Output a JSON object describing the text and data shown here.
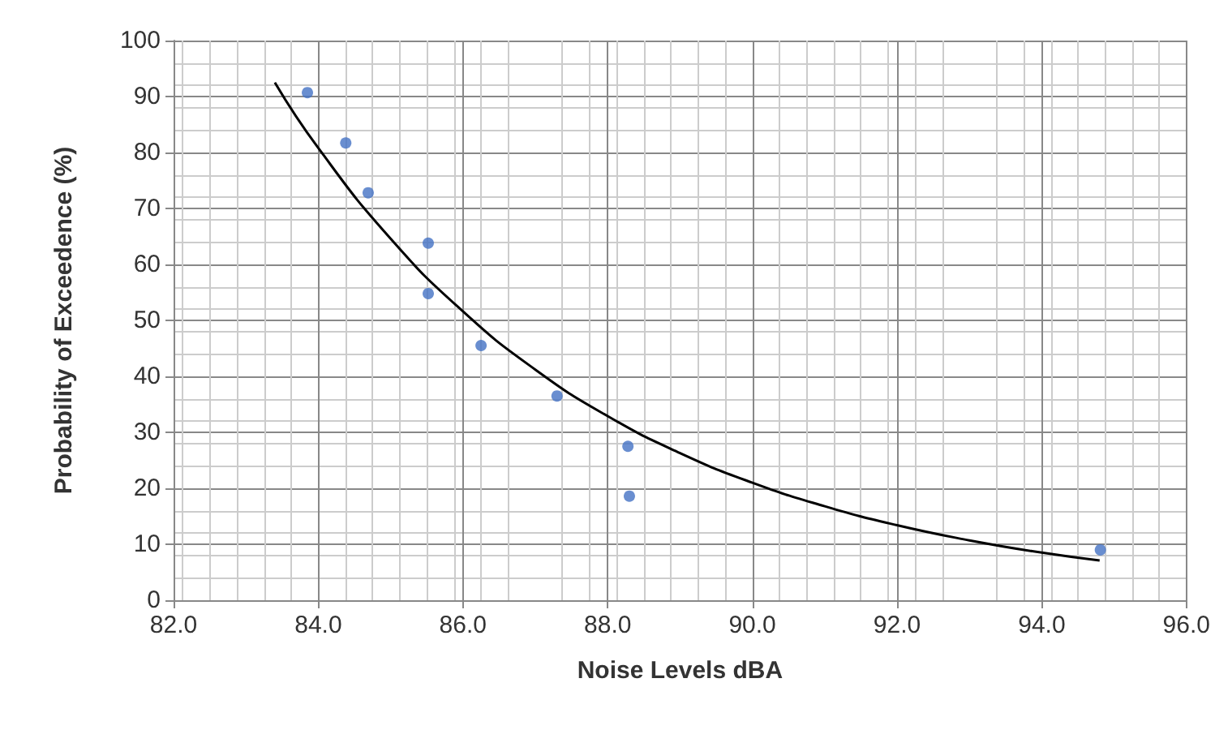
{
  "chart_data": {
    "type": "scatter",
    "xlabel": "Noise Levels dBA",
    "ylabel": "Probability of Exceedence (%)",
    "series": [
      {
        "marker": "circle",
        "color": "#4472c4",
        "x": [
          83.85,
          84.38,
          84.69,
          85.52,
          85.52,
          86.25,
          87.3,
          88.28,
          88.3,
          94.81
        ],
        "values": [
          90.7,
          81.7,
          72.8,
          63.8,
          54.8,
          45.5,
          36.5,
          27.5,
          18.6,
          9.0
        ]
      },
      {
        "type": "line",
        "marker": "none",
        "color": "#000000",
        "x": [
          83.4,
          84,
          85,
          86,
          87,
          88,
          89,
          90,
          91,
          92,
          93,
          94,
          94.8
        ],
        "values": [
          92.5,
          80.8,
          64.6,
          51.6,
          41.2,
          32.9,
          26.3,
          21.0,
          16.8,
          13.4,
          10.7,
          8.5,
          7.1
        ]
      }
    ],
    "xlim": [
      82,
      96
    ],
    "xticks": [
      {
        "value": 82,
        "label": "82.0"
      },
      {
        "value": 84,
        "label": "84.0"
      },
      {
        "value": 86,
        "label": "86.0"
      },
      {
        "value": 88,
        "label": "88.0"
      },
      {
        "value": 90,
        "label": "90.0"
      },
      {
        "value": 92,
        "label": "92.0"
      },
      {
        "value": 94,
        "label": "94.0"
      },
      {
        "value": 96,
        "label": "96.0"
      }
    ],
    "ylim": [
      0,
      100
    ],
    "yticks": [
      0,
      10,
      20,
      30,
      40,
      50,
      60,
      70,
      80,
      90,
      100
    ],
    "grid": true,
    "line_style": "solid"
  }
}
